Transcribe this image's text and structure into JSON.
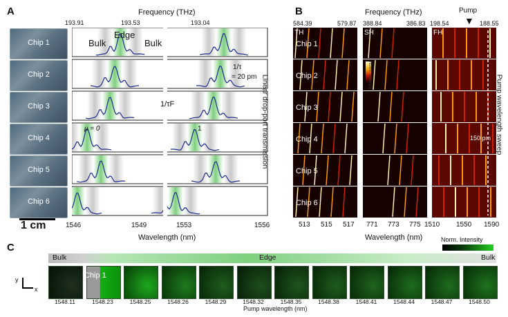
{
  "panel_a": {
    "label": "A",
    "top_axis_title": "Frequency (THz)",
    "top_ticks": [
      "193.91",
      "193.53",
      "193.04"
    ],
    "bottom_axis_title": "Wavelength (nm)",
    "bottom_ticks": [
      "1546",
      "1549",
      "1553",
      "1556"
    ],
    "right_axis_title": "Linear drop-port transmission",
    "chips": [
      "Chip 1",
      "Chip 2",
      "Chip 3",
      "Chip 4",
      "Chip 5",
      "Chip 6"
    ],
    "annotations": {
      "edge": "Edge",
      "bulk_left": "Bulk",
      "bulk_right": "Bulk",
      "tau_label": "1/τ",
      "tau_value": "= 20 pm",
      "tf_label": "1/τF",
      "mu0": "μ = 0",
      "mu1": "1"
    },
    "scale_bar": "1 cm"
  },
  "panel_b": {
    "label": "B",
    "axis_title": "Frequency (THz)",
    "bottom_axis_title": "Wavelength (nm)",
    "right_axis_title": "Pump wavelength sweep",
    "pump_label": "Pump",
    "panels": [
      {
        "name": "TH",
        "top_ticks": [
          "584.39",
          "579.87"
        ],
        "bottom_ticks": [
          "513",
          "515",
          "517"
        ]
      },
      {
        "name": "SH",
        "top_ticks": [
          "388.84",
          "386.83"
        ],
        "bottom_ticks": [
          "771",
          "773",
          "775"
        ]
      },
      {
        "name": "FH",
        "top_ticks": [
          "198.54",
          "188.55"
        ],
        "bottom_ticks": [
          "1510",
          "1550",
          "1590"
        ]
      }
    ],
    "chips": [
      "Chip 1",
      "Chip 2",
      "Chip 3",
      "Chip 4",
      "Chip 5",
      "Chip 6"
    ],
    "colorbar_label": "Norm. Intensity",
    "annotation_150pm": "150 pm"
  },
  "panel_c": {
    "label": "C",
    "bulk_left": "Bulk",
    "edge": "Edge",
    "bulk_right": "Bulk",
    "chip_label": "Chip 1",
    "colorbar_label": "Norm. Intensity",
    "axis_y": "y",
    "axis_x": "x",
    "bottom_axis_title": "Pump wavelength (nm)",
    "wavelengths": [
      "1548.11",
      "1548.23",
      "1548.25",
      "1548.26",
      "1548.29",
      "1548.32",
      "1548.35",
      "1548.38",
      "1548.41",
      "1548.44",
      "1548.47",
      "1548.50"
    ],
    "tile_brightness": [
      0.05,
      0.9,
      0.85,
      0.55,
      0.35,
      0.25,
      0.3,
      0.35,
      0.4,
      0.45,
      0.45,
      0.5
    ]
  }
}
